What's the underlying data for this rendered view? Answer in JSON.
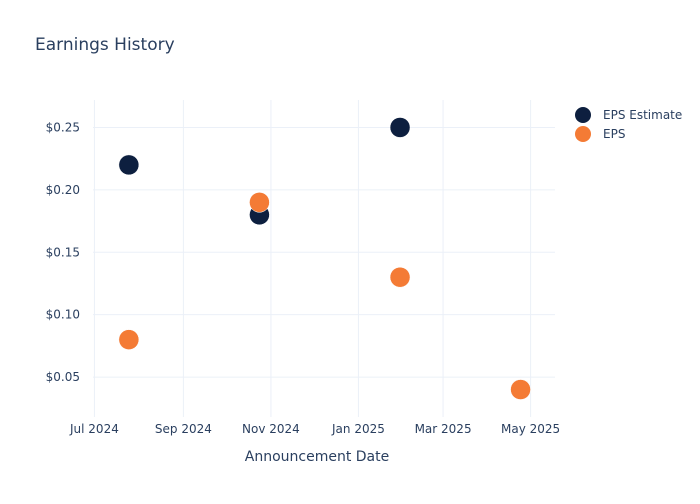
{
  "chart_data": {
    "type": "scatter",
    "title": "Earnings History",
    "xlabel": "Announcement Date",
    "ylabel": "",
    "x_ticks": [
      "Jul 2024",
      "Sep 2024",
      "Nov 2024",
      "Jan 2025",
      "Mar 2025",
      "May 2025"
    ],
    "x_tick_dates": [
      "2024-07-01",
      "2024-09-01",
      "2024-11-01",
      "2025-01-01",
      "2025-03-01",
      "2025-05-01"
    ],
    "y_ticks": [
      "$0.05",
      "$0.10",
      "$0.15",
      "$0.20",
      "$0.25"
    ],
    "y_tick_values": [
      0.05,
      0.1,
      0.15,
      0.2,
      0.25
    ],
    "xlim": [
      "2024-06-30",
      "2025-05-18"
    ],
    "ylim": [
      0.018,
      0.272
    ],
    "grid": true,
    "legend_position": "top-right",
    "x": [
      "2024-07-25",
      "2024-10-24",
      "2025-01-30",
      "2025-04-24"
    ],
    "series": [
      {
        "name": "EPS Estimate",
        "color": "#0d1f3f",
        "values": [
          0.22,
          0.18,
          0.25,
          0.04
        ]
      },
      {
        "name": "EPS",
        "color": "#f47b35",
        "values": [
          0.08,
          0.19,
          0.13,
          0.04
        ]
      }
    ],
    "colors": {
      "text": "#2a3f5f",
      "grid": "#ebf0f8",
      "axis": "#e8ecf3"
    }
  }
}
